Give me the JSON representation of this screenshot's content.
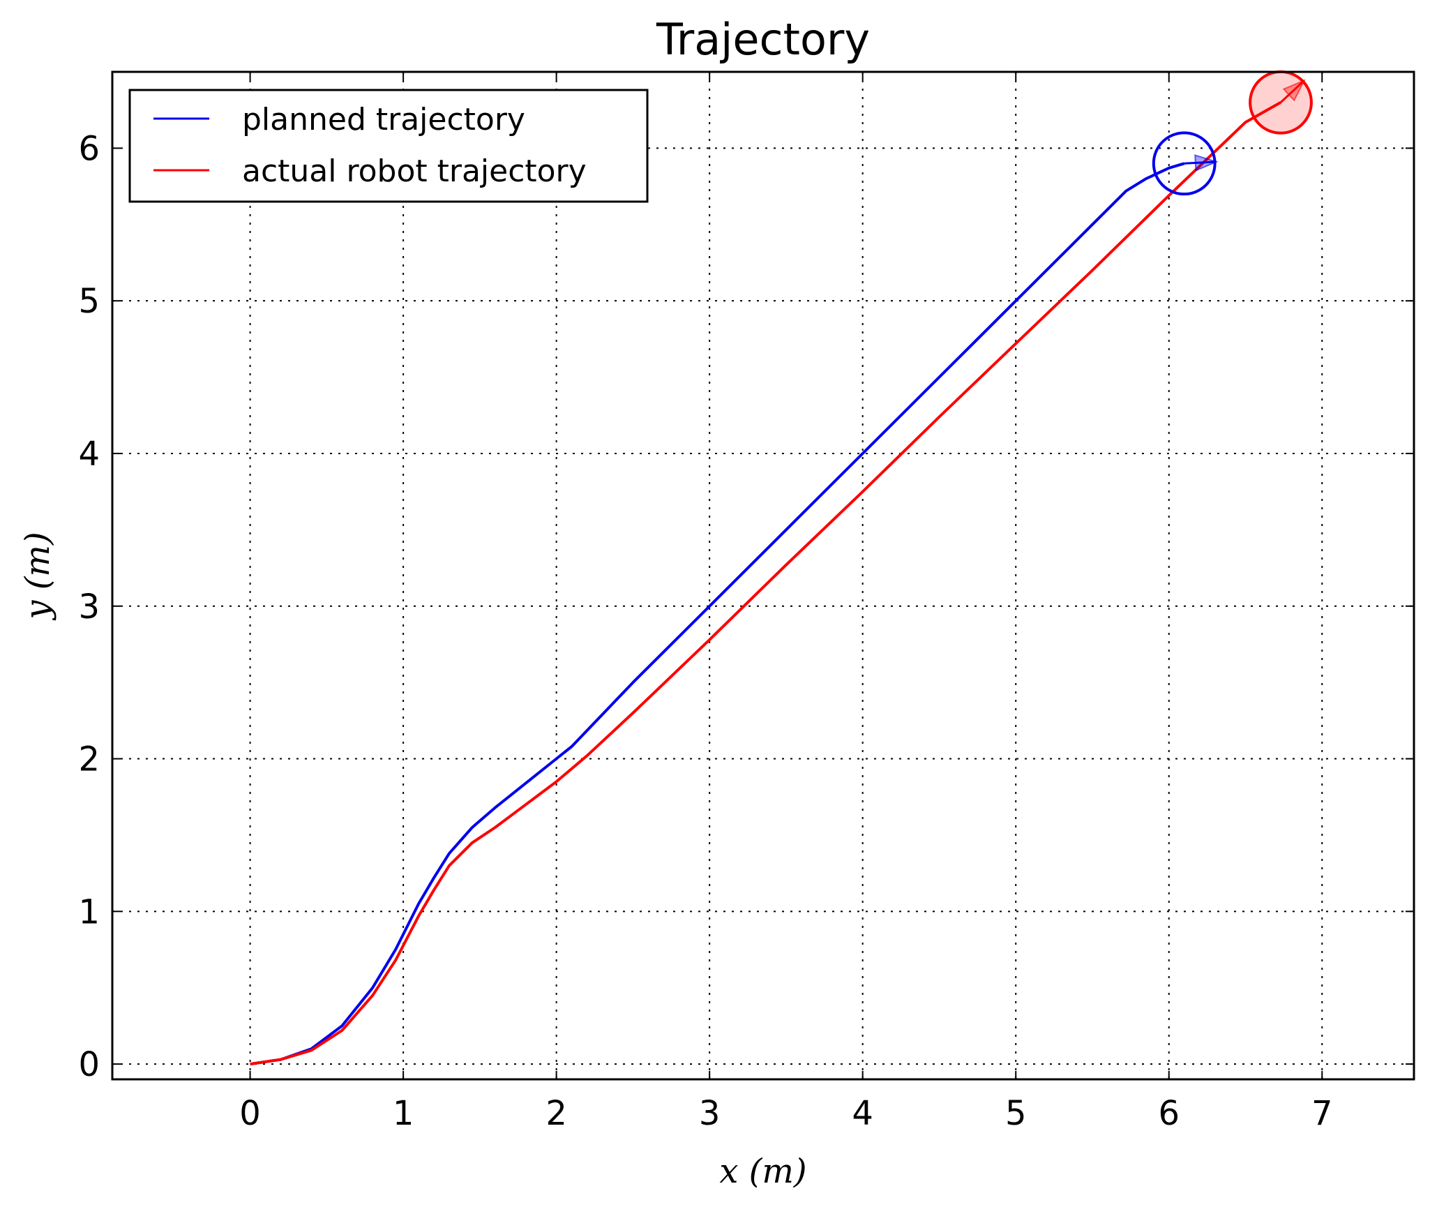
{
  "chart_data": {
    "type": "line",
    "title": "Trajectory",
    "xlabel": "x (m)",
    "ylabel": "y (m)",
    "xlim": [
      -0.9,
      7.6
    ],
    "ylim": [
      -0.1,
      6.5
    ],
    "xticks": [
      0,
      1,
      2,
      3,
      4,
      5,
      6,
      7
    ],
    "yticks": [
      0,
      1,
      2,
      3,
      4,
      5,
      6
    ],
    "grid": true,
    "legend_position": "top-left",
    "series": [
      {
        "name": "planned trajectory",
        "color": "#0000ee",
        "x": [
          0,
          0.2,
          0.4,
          0.6,
          0.8,
          0.95,
          1.1,
          1.2,
          1.3,
          1.45,
          1.6,
          1.8,
          2.0,
          2.1,
          2.5,
          3.0,
          3.5,
          4.0,
          4.5,
          5.0,
          5.5,
          5.72,
          5.85,
          6.0,
          6.1
        ],
        "y": [
          0,
          0.03,
          0.1,
          0.25,
          0.5,
          0.75,
          1.05,
          1.22,
          1.38,
          1.55,
          1.68,
          1.84,
          2.0,
          2.08,
          2.5,
          3.0,
          3.5,
          4.0,
          4.5,
          5.0,
          5.5,
          5.72,
          5.8,
          5.87,
          5.9
        ]
      },
      {
        "name": "actual robot trajectory",
        "color": "#ff0000",
        "x": [
          0,
          0.2,
          0.4,
          0.6,
          0.8,
          0.95,
          1.1,
          1.2,
          1.3,
          1.45,
          1.6,
          1.8,
          2.0,
          2.2,
          2.5,
          3.0,
          3.5,
          4.0,
          4.5,
          5.0,
          5.5,
          6.0,
          6.5,
          6.73
        ],
        "y": [
          0,
          0.03,
          0.09,
          0.22,
          0.45,
          0.68,
          0.97,
          1.14,
          1.3,
          1.45,
          1.55,
          1.7,
          1.85,
          2.02,
          2.3,
          2.78,
          3.27,
          3.75,
          4.24,
          4.72,
          5.2,
          5.69,
          6.17,
          6.3
        ]
      }
    ],
    "markers": [
      {
        "name": "planned robot pose",
        "color": "#0000ee",
        "x": 6.1,
        "y": 5.9,
        "radius": 0.2,
        "heading_deg": 3,
        "filled": false
      },
      {
        "name": "actual robot pose",
        "color": "#ff0000",
        "x": 6.73,
        "y": 6.3,
        "radius": 0.2,
        "heading_deg": 43,
        "filled": true
      }
    ]
  }
}
